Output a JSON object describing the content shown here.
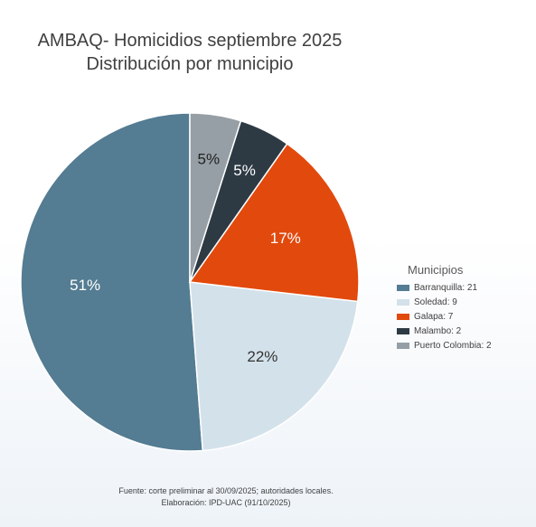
{
  "chart_data": {
    "type": "pie",
    "title": "AMBAQ- Homicidios septiembre 2025",
    "subtitle": "Distribución por municipio",
    "legend_title": "Municipios",
    "legend_position": "right",
    "slices": [
      {
        "legend_label": "Barranquilla: 21",
        "value": 21,
        "label": "51%",
        "color": "#547c92",
        "label_color": "#ffffff"
      },
      {
        "legend_label": "Soledad: 9",
        "value": 9,
        "label": "22%",
        "color": "#d3e1ea",
        "label_color": "#333333"
      },
      {
        "legend_label": "Galapa: 7",
        "value": 7,
        "label": "17%",
        "color": "#e2490d",
        "label_color": "#ffffff"
      },
      {
        "legend_label": "Malambo: 2",
        "value": 2,
        "label": "5%",
        "color": "#2d3a44",
        "label_color": "#ffffff"
      },
      {
        "legend_label": "Puerto Colombia: 2",
        "value": 2,
        "label": "5%",
        "color": "#969fa5",
        "label_color": "#222222"
      }
    ]
  },
  "footer": {
    "source": "Fuente: corte preliminar al 30/09/2025; autoridades locales.",
    "credit": "Elaboración: IPD-UAC (91/10/2025)"
  }
}
